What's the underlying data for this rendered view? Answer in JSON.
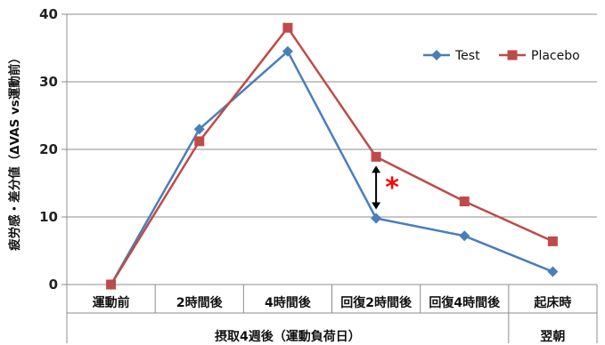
{
  "chart_data": {
    "type": "line",
    "ylabel": "疲労感・差分値（ΔVAS vs運動前）",
    "ylim": [
      0,
      40
    ],
    "yticks": [
      0,
      10,
      20,
      30,
      40
    ],
    "categories": [
      "運動前",
      "2時間後",
      "4時間後",
      "回復2時間後",
      "回復4時間後",
      "起床時"
    ],
    "category_groups": [
      {
        "label": "摂取4週後（運動負荷日）",
        "span": [
          0,
          4
        ]
      },
      {
        "label": "翌朝",
        "span": [
          5,
          5
        ]
      }
    ],
    "series": [
      {
        "name": "Test",
        "color": "#4A7EBB",
        "marker": "diamond",
        "values": [
          0,
          23,
          34.5,
          9.8,
          7.2,
          1.9
        ]
      },
      {
        "name": "Placebo",
        "color": "#BE4B48",
        "marker": "square",
        "values": [
          0,
          21.2,
          38,
          18.9,
          12.3,
          6.4
        ]
      }
    ],
    "grid": true,
    "legend": "top-right",
    "annotation": {
      "text": "*",
      "color": "#FF0000",
      "category_index": 3,
      "from": 9.8,
      "to": 18.9
    }
  }
}
